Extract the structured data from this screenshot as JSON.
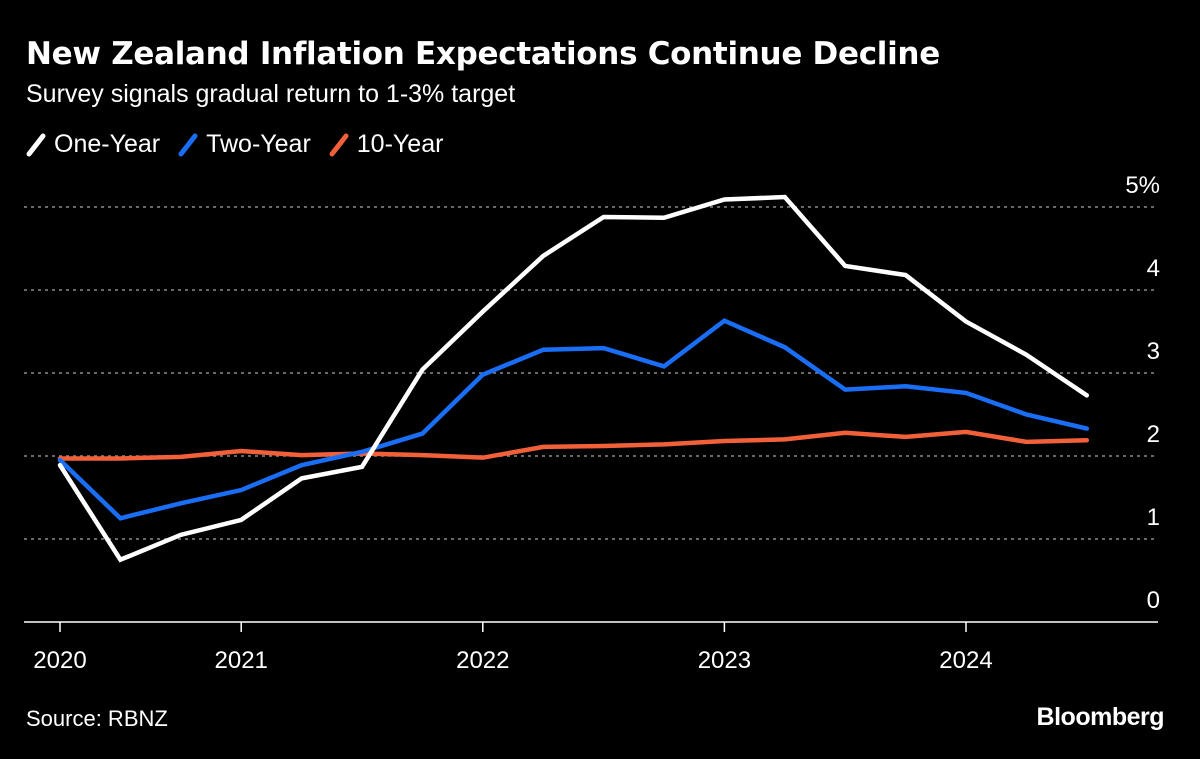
{
  "header": {
    "title": "New Zealand Inflation Expectations Continue Decline",
    "subtitle": "Survey signals gradual return to 1-3% target"
  },
  "footer": {
    "source": "Source: RBNZ",
    "logo": "Bloomberg"
  },
  "chart_data": {
    "type": "line",
    "title": "New Zealand Inflation Expectations Continue Decline",
    "subtitle": "Survey signals gradual return to 1-3% target",
    "xlabel": "",
    "ylabel": "",
    "x": [
      "2020 Q2",
      "2020 Q3",
      "2020 Q4",
      "2021 Q1",
      "2021 Q2",
      "2021 Q3",
      "2021 Q4",
      "2022 Q1",
      "2022 Q2",
      "2022 Q3",
      "2022 Q4",
      "2023 Q1",
      "2023 Q2",
      "2023 Q3",
      "2023 Q4",
      "2024 Q1",
      "2024 Q2",
      "2024 Q3"
    ],
    "x_ticks": [
      {
        "label": "2020",
        "at": "2020 Q2"
      },
      {
        "label": "2021",
        "at": "2021 Q1"
      },
      {
        "label": "2022",
        "at": "2022 Q1"
      },
      {
        "label": "2023",
        "at": "2023 Q1"
      },
      {
        "label": "2024",
        "at": "2024 Q1"
      }
    ],
    "y_ticks": [
      {
        "value": 0,
        "label": "0"
      },
      {
        "value": 1,
        "label": "1"
      },
      {
        "value": 2,
        "label": "2"
      },
      {
        "value": 3,
        "label": "3"
      },
      {
        "value": 4,
        "label": "4"
      },
      {
        "value": 5,
        "label": "5%"
      }
    ],
    "ylim": [
      0,
      5
    ],
    "y_axis_side": "right",
    "grid": "horizontal dotted",
    "legend": "top-left",
    "series": [
      {
        "name": "One-Year",
        "color": "#ffffff",
        "values": [
          1.89,
          0.75,
          1.05,
          1.23,
          1.73,
          1.87,
          3.04,
          3.74,
          4.41,
          4.88,
          4.87,
          5.09,
          5.12,
          4.29,
          4.18,
          3.62,
          3.22,
          2.73
        ]
      },
      {
        "name": "Two-Year",
        "color": "#1a6ef5",
        "values": [
          1.95,
          1.25,
          1.43,
          1.59,
          1.89,
          2.05,
          2.27,
          2.98,
          3.28,
          3.3,
          3.08,
          3.63,
          3.31,
          2.8,
          2.84,
          2.76,
          2.5,
          2.33
        ]
      },
      {
        "name": "10-Year",
        "color": "#f2603a",
        "values": [
          1.97,
          1.97,
          1.99,
          2.06,
          2.01,
          2.03,
          2.01,
          1.98,
          2.11,
          2.12,
          2.14,
          2.18,
          2.2,
          2.28,
          2.23,
          2.29,
          2.17,
          2.19
        ]
      }
    ]
  }
}
